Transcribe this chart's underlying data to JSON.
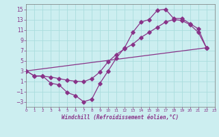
{
  "background_color": "#cceef0",
  "grid_color": "#aadddd",
  "line_color": "#883388",
  "xlim": [
    0,
    23
  ],
  "ylim": [
    -4,
    16
  ],
  "xlabel": "Windchill (Refroidissement éolien,°C)",
  "yticks": [
    -3,
    -1,
    1,
    3,
    5,
    7,
    9,
    11,
    13,
    15
  ],
  "xticks": [
    0,
    1,
    2,
    3,
    4,
    5,
    6,
    7,
    8,
    9,
    10,
    11,
    12,
    13,
    14,
    15,
    16,
    17,
    18,
    19,
    20,
    21,
    22,
    23
  ],
  "curve1_x": [
    0,
    1,
    2,
    3,
    4,
    5,
    6,
    7,
    8,
    9,
    10,
    11,
    12,
    13,
    14,
    15,
    16,
    17,
    18,
    19,
    20,
    21,
    22
  ],
  "curve1_y": [
    3.0,
    2.0,
    2.0,
    0.6,
    0.3,
    -1.2,
    -1.8,
    -3.0,
    -2.5,
    0.6,
    3.0,
    5.5,
    7.5,
    10.5,
    12.5,
    13.0,
    14.8,
    15.0,
    13.2,
    13.2,
    12.2,
    11.2,
    7.5
  ],
  "curve2_x": [
    0,
    1,
    2,
    3,
    4,
    5,
    6,
    7,
    8,
    9,
    10,
    11,
    12,
    13,
    14,
    15,
    16,
    17,
    18,
    19,
    20,
    21,
    22
  ],
  "curve2_y": [
    3.0,
    2.0,
    2.0,
    1.8,
    1.5,
    1.2,
    1.0,
    0.9,
    1.5,
    2.8,
    4.8,
    6.2,
    7.3,
    8.2,
    9.5,
    10.5,
    11.5,
    12.5,
    13.0,
    12.8,
    12.0,
    10.5,
    7.5
  ],
  "curve3_x": [
    0,
    22
  ],
  "curve3_y": [
    3.0,
    7.5
  ]
}
